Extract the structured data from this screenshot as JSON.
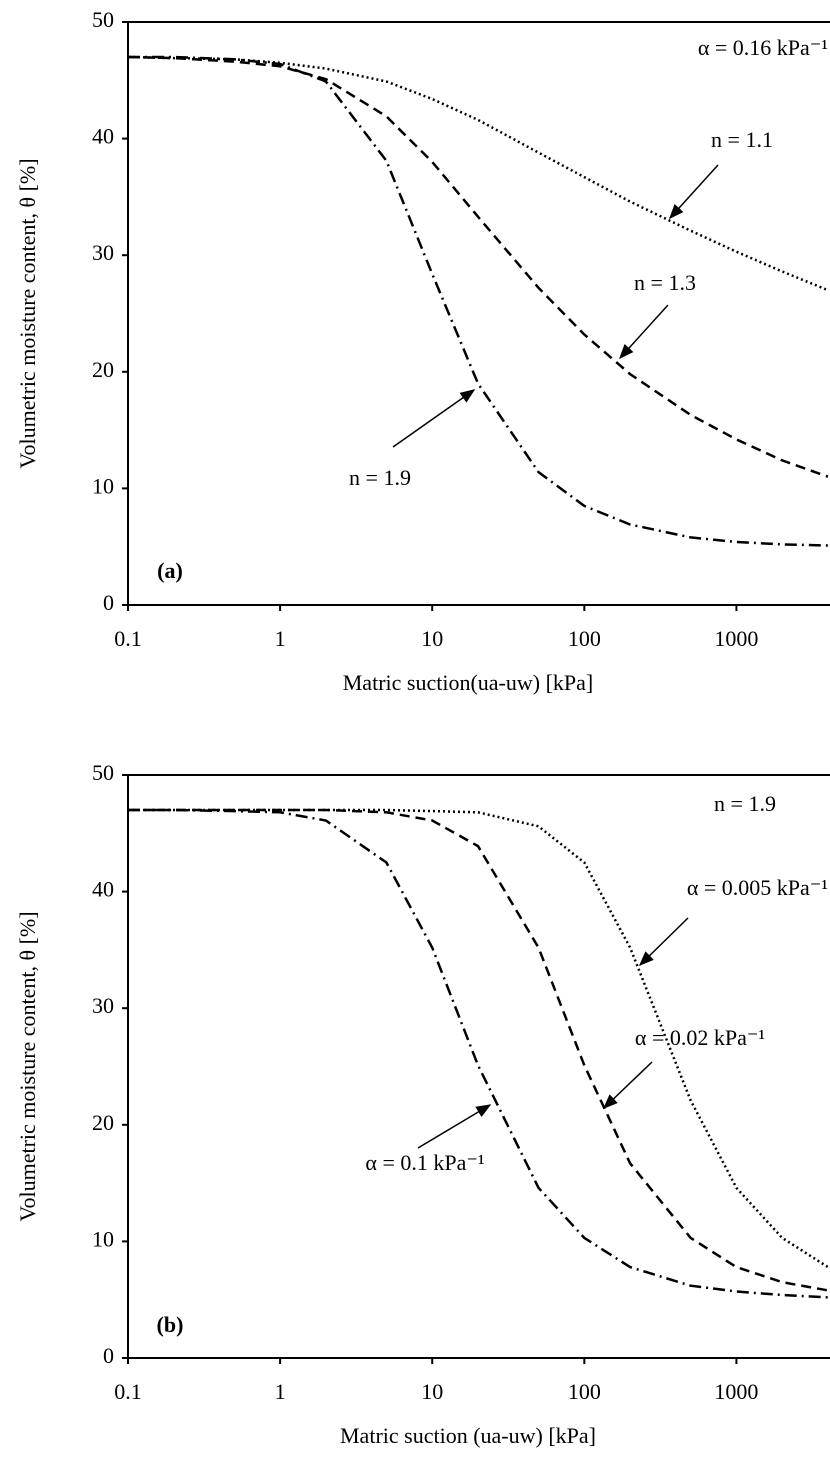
{
  "chart_data": [
    {
      "type": "line",
      "xlabel": "Matric suction(ua-uw) [kPa]",
      "ylabel": "Volumetric moisture content, θ [%]",
      "xscale": "log",
      "xlim": [
        0.1,
        4000
      ],
      "ylim": [
        0,
        50
      ],
      "xticks": [
        0.1,
        1,
        10,
        100,
        1000
      ],
      "yticks": [
        0,
        10,
        20,
        30,
        40,
        50
      ],
      "annotations": [
        "α = 0.16 kPa⁻¹",
        "n = 1.1",
        "n = 1.3",
        "n = 1.9",
        "(a)"
      ],
      "x": [
        0.1,
        0.2,
        0.5,
        1,
        2,
        5,
        10,
        20,
        50,
        100,
        200,
        500,
        1000,
        2000,
        4000
      ],
      "series": [
        {
          "color": "#000000",
          "linestyle": "dotted",
          "values": [
            47.0,
            46.9,
            46.8,
            46.5,
            46.0,
            44.9,
            43.4,
            41.6,
            38.8,
            36.7,
            34.6,
            32.1,
            30.3,
            28.6,
            27.0
          ]
        },
        {
          "color": "#000000",
          "linestyle": "dashed",
          "values": [
            47.0,
            46.9,
            46.6,
            46.2,
            45.1,
            41.9,
            38.0,
            33.3,
            27.2,
            23.2,
            19.8,
            16.3,
            14.2,
            12.4,
            11.0
          ]
        },
        {
          "color": "#000000",
          "linestyle": "dashdot",
          "values": [
            47.0,
            47.0,
            46.8,
            46.4,
            44.9,
            38.1,
            28.4,
            19.0,
            11.4,
            8.5,
            6.9,
            5.8,
            5.4,
            5.2,
            5.1
          ]
        }
      ]
    },
    {
      "type": "line",
      "xlabel": "Matric suction (ua-uw) [kPa]",
      "ylabel": "Volumetric moisture content, θ [%]",
      "xscale": "log",
      "xlim": [
        0.1,
        4000
      ],
      "ylim": [
        0,
        50
      ],
      "xticks": [
        0.1,
        1,
        10,
        100,
        1000
      ],
      "yticks": [
        0,
        10,
        20,
        30,
        40,
        50
      ],
      "annotations": [
        "n = 1.9",
        "α = 0.005 kPa⁻¹",
        "α = 0.02 kPa⁻¹",
        "α = 0.1 kPa⁻¹",
        "(b)"
      ],
      "x": [
        0.1,
        0.2,
        0.5,
        1,
        2,
        5,
        10,
        20,
        50,
        100,
        200,
        500,
        1000,
        2000,
        4000
      ],
      "series": [
        {
          "color": "#000000",
          "linestyle": "dotted",
          "values": [
            47.0,
            47.0,
            47.0,
            47.0,
            47.0,
            47.0,
            46.9,
            46.8,
            45.6,
            42.5,
            35.2,
            22.1,
            14.6,
            10.3,
            7.8
          ]
        },
        {
          "color": "#000000",
          "linestyle": "dashed",
          "values": [
            47.0,
            47.0,
            47.0,
            47.0,
            47.0,
            46.8,
            46.1,
            43.9,
            35.2,
            25.1,
            16.7,
            10.3,
            7.8,
            6.5,
            5.8
          ]
        },
        {
          "color": "#000000",
          "linestyle": "dashdot",
          "values": [
            47.0,
            47.0,
            46.9,
            46.8,
            46.1,
            42.5,
            35.2,
            25.1,
            14.6,
            10.3,
            7.8,
            6.2,
            5.7,
            5.4,
            5.2
          ]
        }
      ]
    }
  ]
}
